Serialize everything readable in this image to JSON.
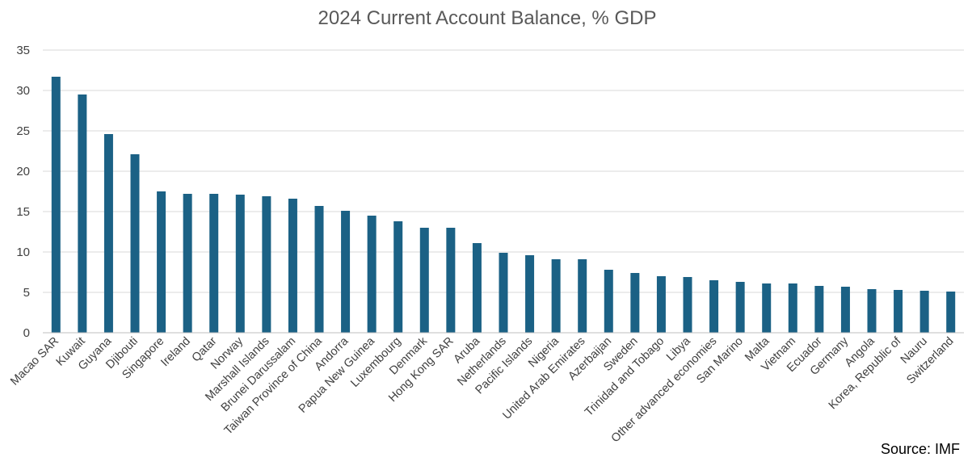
{
  "chart_data": {
    "type": "bar",
    "title": "2024 Current Account Balance, % GDP",
    "xlabel": "",
    "ylabel": "",
    "ylim": [
      0,
      35
    ],
    "yticks": [
      0,
      5,
      10,
      15,
      20,
      25,
      30,
      35
    ],
    "grid": true,
    "legend": "none",
    "bar_color": "#1b6185",
    "categories": [
      "Macao SAR",
      "Kuwait",
      "Guyana",
      "Djibouti",
      "Singapore",
      "Ireland",
      "Qatar",
      "Norway",
      "Marshall Islands",
      "Brunei Darussalam",
      "Taiwan Province of China",
      "Andorra",
      "Papua New Guinea",
      "Luxembourg",
      "Denmark",
      "Hong Kong SAR",
      "Aruba",
      "Netherlands",
      "Pacific Islands",
      "Nigeria",
      "United Arab Emirates",
      "Azerbaijan",
      "Sweden",
      "Trinidad and Tobago",
      "Libya",
      "Other advanced economies",
      "San Marino",
      "Malta",
      "Vietnam",
      "Ecuador",
      "Germany",
      "Angola",
      "Korea, Republic of",
      "Nauru",
      "Switzerland"
    ],
    "values": [
      31.7,
      29.5,
      24.6,
      22.1,
      17.5,
      17.2,
      17.2,
      17.1,
      16.9,
      16.6,
      15.7,
      15.1,
      14.5,
      13.8,
      13.0,
      13.0,
      11.1,
      9.9,
      9.6,
      9.1,
      9.1,
      7.8,
      7.4,
      7.0,
      6.9,
      6.5,
      6.3,
      6.1,
      6.1,
      5.8,
      5.7,
      5.4,
      5.3,
      5.2,
      5.1
    ]
  },
  "source": "Source: IMF"
}
